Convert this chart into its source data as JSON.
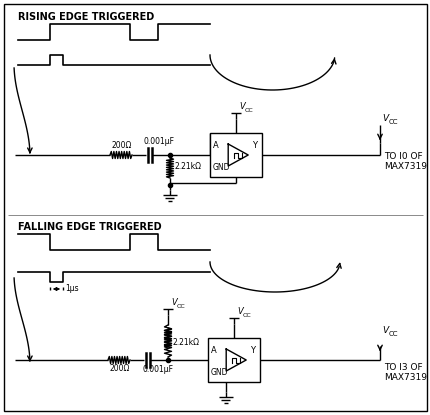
{
  "fig_width": 4.31,
  "fig_height": 4.15,
  "dpi": 100,
  "rising_label": "RISING EDGE TRIGGERED",
  "falling_label": "FALLING EDGE TRIGGERED",
  "to_i0_label": "TO I0 OF\nMAX7319",
  "to_i3_label": "TO I3 OF\nMAX7319",
  "cap1_label": "0.001μF",
  "res1_label": "200Ω",
  "res2_label": "2.21kΩ",
  "cap2_label": "0.001μF",
  "res3_label": "200Ω",
  "res4_label": "2.21kΩ",
  "time_label": "1μs",
  "a_label": "A",
  "gnd_label": "GND",
  "y_label": "Y"
}
